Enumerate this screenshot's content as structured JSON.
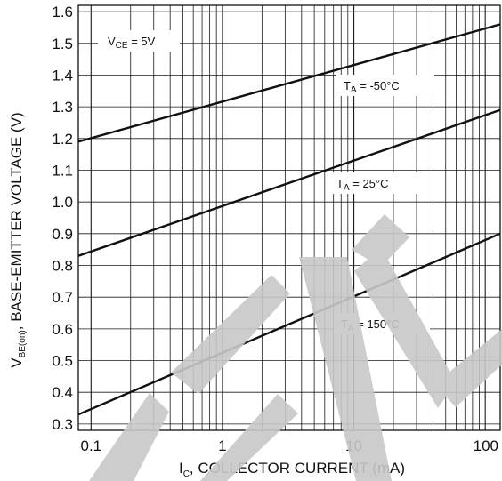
{
  "chart_data": {
    "type": "line",
    "xscale": "log",
    "xlim": [
      0.08,
      130
    ],
    "ylim": [
      0.28,
      1.62
    ],
    "grid": true,
    "xlabel": {
      "main": "I",
      "sub": "C",
      "rest": ", COLLECTOR CURRENT (mA)"
    },
    "ylabel": {
      "main": "V",
      "sub": "BE(on)",
      "rest": ", BASE-EMITTER VOLTAGE (V)"
    },
    "x_tick_labels": [
      {
        "value": 0.1,
        "label": "0.1"
      },
      {
        "value": 1,
        "label": "1"
      },
      {
        "value": 10,
        "label": "10"
      },
      {
        "value": 100,
        "label": "100"
      }
    ],
    "y_tick_labels": [
      {
        "value": 0.3,
        "label": "0.3"
      },
      {
        "value": 0.4,
        "label": "0.4"
      },
      {
        "value": 0.5,
        "label": "0.5"
      },
      {
        "value": 0.6,
        "label": "0.6"
      },
      {
        "value": 0.7,
        "label": "0.7"
      },
      {
        "value": 0.8,
        "label": "0.8"
      },
      {
        "value": 0.9,
        "label": "0.9"
      },
      {
        "value": 1.0,
        "label": "1.0"
      },
      {
        "value": 1.1,
        "label": "1.1"
      },
      {
        "value": 1.2,
        "label": "1.2"
      },
      {
        "value": 1.3,
        "label": "1.3"
      },
      {
        "value": 1.4,
        "label": "1.4"
      },
      {
        "value": 1.5,
        "label": "1.5"
      },
      {
        "value": 1.6,
        "label": "1.6"
      }
    ],
    "annotation": {
      "main": "V",
      "sub": "CE",
      "rest": " = 5V"
    },
    "series": [
      {
        "name": "T_A = -50°C",
        "label_main": "T",
        "label_sub": "A",
        "label_rest": " = -50°C",
        "x": [
          0.08,
          130
        ],
        "y": [
          1.19,
          1.56
        ]
      },
      {
        "name": "T_A = 25°C",
        "label_main": "T",
        "label_sub": "A",
        "label_rest": " = 25°C",
        "x": [
          0.08,
          130
        ],
        "y": [
          0.83,
          1.29
        ]
      },
      {
        "name": "T_A = 150°C",
        "label_main": "T",
        "label_sub": "A",
        "label_rest": " = 150°C",
        "x": [
          0.08,
          130
        ],
        "y": [
          0.33,
          0.9
        ]
      }
    ]
  }
}
